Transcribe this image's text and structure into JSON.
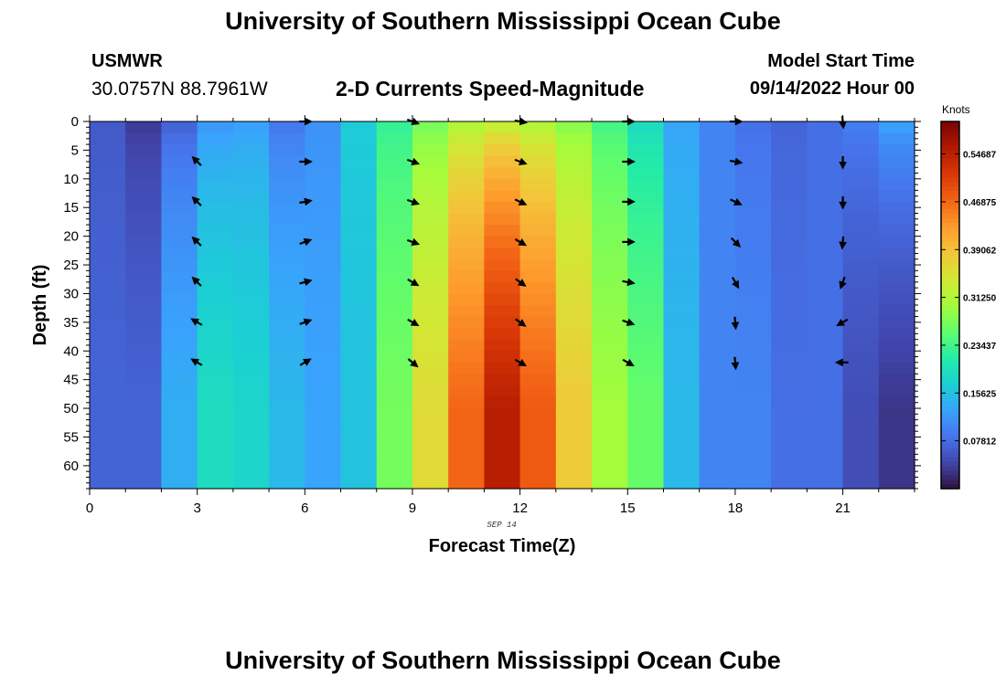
{
  "title": "University of Southern Mississippi Ocean Cube",
  "station": {
    "name": "USMWR",
    "coords": "30.0757N  88.7961W"
  },
  "subtitle": "2-D Currents Speed-Magnitude",
  "model": {
    "label": "Model Start Time",
    "value": "09/14/2022 Hour 00"
  },
  "footer_title": "University of Southern Mississippi Ocean Cube",
  "chart_data": {
    "type": "heatmap",
    "title": "2-D Currents Speed-Magnitude",
    "xlabel": "Forecast Time(Z)",
    "ylabel": "Depth (ft)",
    "date_label": "SEP 14",
    "x_ticks": [
      0,
      3,
      6,
      9,
      12,
      15,
      18,
      21
    ],
    "y_ticks": [
      0,
      5,
      10,
      15,
      20,
      25,
      30,
      35,
      40,
      45,
      50,
      55,
      60
    ],
    "xlim": [
      0,
      23
    ],
    "ylim": [
      0,
      64
    ],
    "colorbar": {
      "unit": "Knots",
      "range": [
        0.0,
        0.6
      ],
      "ticks": [
        0.07812,
        0.15625,
        0.23437,
        0.3125,
        0.39062,
        0.46875,
        0.54687
      ],
      "tick_labels": [
        "0.07812",
        "0.15625",
        "0.23437",
        "0.31250",
        "0.39062",
        "0.46875",
        "0.54687"
      ],
      "colormap": [
        "#30123b",
        "#4145ab",
        "#4675ed",
        "#39a2fc",
        "#1bcfd4",
        "#24eca6",
        "#61fc6c",
        "#a4fc3b",
        "#d1e834",
        "#f3c63a",
        "#fe9b2d",
        "#f36315",
        "#d93806",
        "#b11901",
        "#7a0403"
      ]
    },
    "time_hours": [
      0.5,
      1.5,
      2.5,
      3.5,
      4.5,
      5.5,
      6.5,
      7.5,
      8.5,
      9.5,
      10.5,
      11.5,
      12.5,
      13.5,
      14.5,
      15.5,
      16.5,
      17.5,
      18.5,
      19.5,
      20.5,
      21.5,
      22.5
    ],
    "surface_speed": [
      0.06,
      0.03,
      0.06,
      0.11,
      0.12,
      0.08,
      0.11,
      0.17,
      0.22,
      0.26,
      0.29,
      0.3,
      0.29,
      0.27,
      0.23,
      0.18,
      0.13,
      0.1,
      0.08,
      0.07,
      0.08,
      0.1,
      0.14
    ],
    "bottom_speed": [
      0.07,
      0.07,
      0.14,
      0.19,
      0.18,
      0.15,
      0.13,
      0.16,
      0.27,
      0.36,
      0.47,
      0.55,
      0.48,
      0.38,
      0.3,
      0.26,
      0.15,
      0.1,
      0.1,
      0.08,
      0.08,
      0.05,
      0.03
    ],
    "profile_peak_depth_ft": 50,
    "vector_depths_ft": [
      0,
      7,
      14,
      21,
      28,
      35,
      42
    ],
    "vector_columns": [
      {
        "hour": 3,
        "dirs": [
          null,
          315,
          315,
          315,
          315,
          300,
          300
        ]
      },
      {
        "hour": 6,
        "dirs": [
          90,
          90,
          80,
          70,
          75,
          70,
          60
        ]
      },
      {
        "hour": 9,
        "dirs": [
          110,
          110,
          110,
          110,
          120,
          120,
          130
        ]
      },
      {
        "hour": 12,
        "dirs": [
          100,
          110,
          115,
          120,
          125,
          125,
          120
        ]
      },
      {
        "hour": 15,
        "dirs": [
          90,
          90,
          90,
          90,
          100,
          110,
          120
        ]
      },
      {
        "hour": 18,
        "dirs": [
          90,
          100,
          115,
          135,
          150,
          175,
          175
        ]
      },
      {
        "hour": 21,
        "dirs": [
          175,
          180,
          180,
          185,
          200,
          240,
          270
        ]
      }
    ]
  }
}
